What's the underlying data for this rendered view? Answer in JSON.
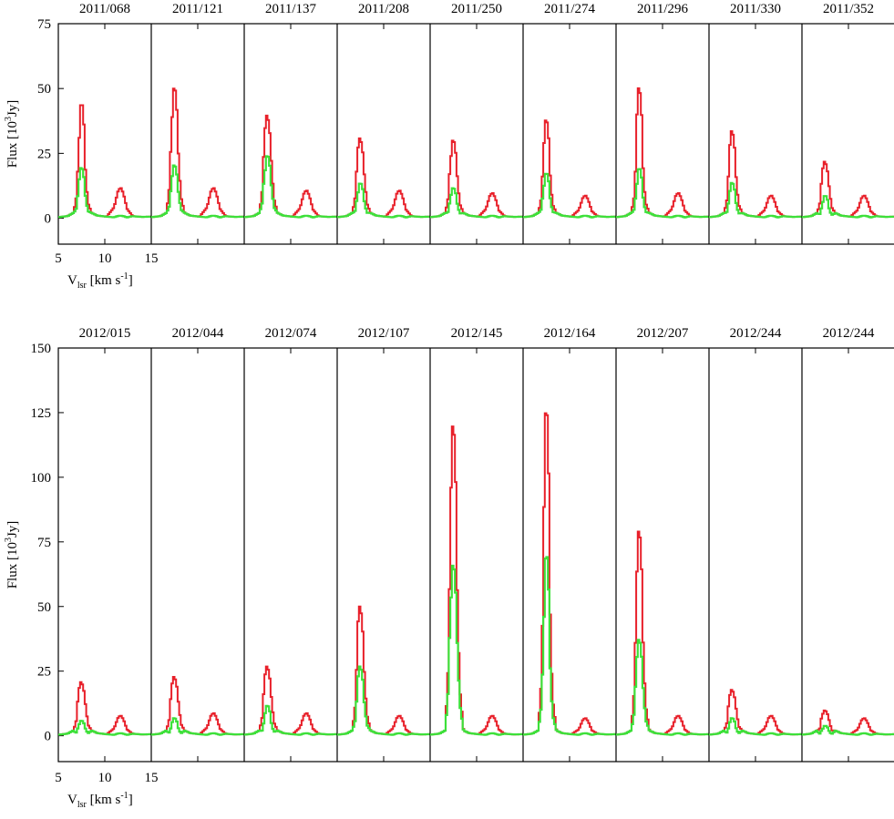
{
  "chart_data": [
    {
      "type": "line",
      "step": true,
      "ylabel": "Flux [10^3 Jy]",
      "xlabel": "V_lsr [km s^-1]",
      "xlim": [
        5,
        15
      ],
      "ylim": [
        -10,
        75
      ],
      "yticks": [
        0,
        25,
        50,
        75
      ],
      "xtick_labels": [
        "5",
        "10",
        "15"
      ],
      "series_colors": {
        "red": "#e8202a",
        "green": "#3de03a"
      },
      "panels": [
        {
          "label": "2011/068",
          "red": {
            "peak": 46,
            "sec": 35,
            "mid": 19,
            "peak2": 12
          },
          "green": {
            "peak": 20,
            "sec": 17,
            "mid": 9,
            "peak2": 1
          }
        },
        {
          "label": "2011/121",
          "red": {
            "peak": 52,
            "sec": 43,
            "mid": 27,
            "peak2": 12
          },
          "green": {
            "peak": 21,
            "sec": 18,
            "mid": 11,
            "peak2": 1
          }
        },
        {
          "label": "2011/137",
          "red": {
            "peak": 40,
            "sec": 38,
            "mid": 25,
            "peak2": 11
          },
          "green": {
            "peak": 25,
            "sec": 20,
            "mid": 14,
            "peak2": 1
          }
        },
        {
          "label": "2011/208",
          "red": {
            "peak": 31,
            "sec": 30,
            "mid": 19,
            "peak2": 11
          },
          "green": {
            "peak": 14,
            "sec": 11,
            "mid": 7,
            "peak2": 1
          }
        },
        {
          "label": "2011/250",
          "red": {
            "peak": 31,
            "sec": 26,
            "mid": 18,
            "peak2": 10
          },
          "green": {
            "peak": 12,
            "sec": 10,
            "mid": 6,
            "peak2": 1
          }
        },
        {
          "label": "2011/274",
          "red": {
            "peak": 39,
            "sec": 33,
            "mid": 17,
            "peak2": 9
          },
          "green": {
            "peak": 18,
            "sec": 14,
            "mid": 8,
            "peak2": 1
          }
        },
        {
          "label": "2011/296",
          "red": {
            "peak": 51,
            "sec": 47,
            "mid": 19,
            "peak2": 10
          },
          "green": {
            "peak": 20,
            "sec": 15,
            "mid": 8,
            "peak2": 1
          }
        },
        {
          "label": "2011/330",
          "red": {
            "peak": 34,
            "sec": 32,
            "mid": 17,
            "peak2": 9
          },
          "green": {
            "peak": 14,
            "sec": 12,
            "mid": 6,
            "peak2": 1
          }
        },
        {
          "label": "2011/352",
          "red": {
            "peak": 22,
            "sec": 21,
            "mid": 14,
            "peak2": 9
          },
          "green": {
            "peak": 9,
            "sec": 7,
            "mid": 4,
            "peak2": 1
          }
        }
      ]
    },
    {
      "type": "line",
      "step": true,
      "ylabel": "Flux [10^3 Jy]",
      "xlabel": "V_lsr [km s^-1]",
      "xlim": [
        5,
        15
      ],
      "ylim": [
        -10,
        150
      ],
      "yticks": [
        0,
        25,
        50,
        75,
        100,
        125,
        150
      ],
      "xtick_labels": [
        "5",
        "10",
        "15"
      ],
      "series_colors": {
        "red": "#e8202a",
        "green": "#3de03a"
      },
      "panels": [
        {
          "label": "2012/015",
          "red": {
            "peak": 21,
            "sec": 20,
            "mid": 14,
            "peak2": 8
          },
          "green": {
            "peak": 6,
            "sec": 5,
            "mid": 3,
            "peak2": 1
          }
        },
        {
          "label": "2012/044",
          "red": {
            "peak": 23,
            "sec": 22,
            "mid": 15,
            "peak2": 9
          },
          "green": {
            "peak": 7,
            "sec": 6,
            "mid": 3,
            "peak2": 1
          }
        },
        {
          "label": "2012/074",
          "red": {
            "peak": 27,
            "sec": 26,
            "mid": 17,
            "peak2": 9
          },
          "green": {
            "peak": 12,
            "sec": 10,
            "mid": 5,
            "peak2": 1
          }
        },
        {
          "label": "2012/107",
          "red": {
            "peak": 50,
            "sec": 50,
            "mid": 27,
            "peak2": 8
          },
          "green": {
            "peak": 27,
            "sec": 26,
            "mid": 14,
            "peak2": 1
          }
        },
        {
          "label": "2012/145",
          "red": {
            "peak": 123,
            "sec": 108,
            "mid": 60,
            "peak2": 8
          },
          "green": {
            "peak": 68,
            "sec": 58,
            "mid": 40,
            "peak2": 1
          }
        },
        {
          "label": "2012/164",
          "red": {
            "peak": 131,
            "sec": 103,
            "mid": 45,
            "peak2": 7
          },
          "green": {
            "peak": 73,
            "sec": 53,
            "mid": 25,
            "peak2": 1
          }
        },
        {
          "label": "2012/207",
          "red": {
            "peak": 81,
            "sec": 72,
            "mid": 38,
            "peak2": 8
          },
          "green": {
            "peak": 38,
            "sec": 34,
            "mid": 20,
            "peak2": 1
          }
        },
        {
          "label": "2012/244",
          "red": {
            "peak": 18,
            "sec": 17,
            "mid": 12,
            "peak2": 8
          },
          "green": {
            "peak": 7,
            "sec": 6,
            "mid": 3,
            "peak2": 1
          }
        },
        {
          "label": "2012/244",
          "red": {
            "peak": 10,
            "sec": 9,
            "mid": 7,
            "peak2": 7
          },
          "green": {
            "peak": 4,
            "sec": 3,
            "mid": 2,
            "peak2": 1
          }
        }
      ]
    }
  ]
}
